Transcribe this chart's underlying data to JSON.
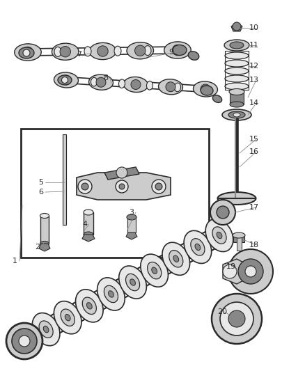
{
  "bg_color": "#ffffff",
  "dg": "#2a2a2a",
  "mg": "#888888",
  "lg": "#cccccc",
  "vlg": "#e8e8e8",
  "figw": 4.38,
  "figh": 5.33,
  "dpi": 100,
  "labels": [
    [
      "1",
      28,
      370,
      null,
      null
    ],
    [
      "2",
      68,
      352,
      null,
      null
    ],
    [
      "3",
      195,
      308,
      null,
      null
    ],
    [
      "4",
      130,
      320,
      null,
      null
    ],
    [
      "5",
      62,
      262,
      null,
      null
    ],
    [
      "6",
      62,
      273,
      null,
      null
    ],
    [
      "7",
      118,
      80,
      null,
      null
    ],
    [
      "8",
      158,
      115,
      null,
      null
    ],
    [
      "9",
      248,
      78,
      null,
      null
    ],
    [
      "10",
      362,
      42,
      null,
      null
    ],
    [
      "11",
      362,
      68,
      null,
      null
    ],
    [
      "12",
      362,
      95,
      null,
      null
    ],
    [
      "13",
      362,
      115,
      null,
      null
    ],
    [
      "14",
      362,
      148,
      null,
      null
    ],
    [
      "15",
      362,
      200,
      null,
      null
    ],
    [
      "16",
      362,
      218,
      null,
      null
    ],
    [
      "17",
      362,
      298,
      null,
      null
    ],
    [
      "18",
      362,
      352,
      null,
      null
    ],
    [
      "19",
      330,
      385,
      null,
      null
    ],
    [
      "20",
      316,
      448,
      null,
      null
    ]
  ]
}
